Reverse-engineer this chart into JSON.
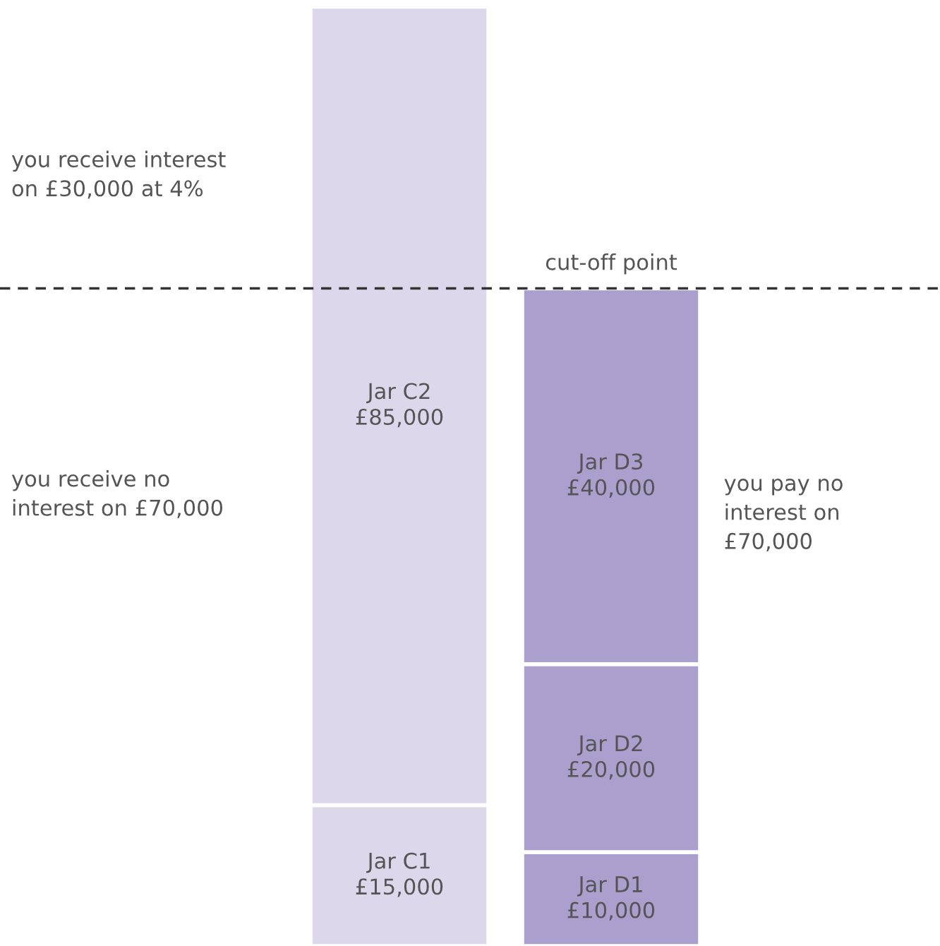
{
  "chart_data": {
    "type": "bar",
    "stacked": true,
    "categories": [
      null,
      null
    ],
    "ylim": [
      0,
      100000
    ],
    "tick_labels": false,
    "grid": false,
    "series": [
      {
        "colors": [
          "#dcd7eb",
          "#ab9fce"
        ],
        "values": [
          15000,
          10000
        ],
        "value_labels": [
          "Jar C1\n£15,000",
          "Jar D1\n£10,000"
        ]
      },
      {
        "colors": [
          "#dcd7eb",
          "#ab9fce"
        ],
        "values": [
          85000,
          20000
        ],
        "value_labels": [
          "Jar C2\n£85,000",
          "Jar D2\n£20,000"
        ]
      },
      {
        "colors": [
          "#dcd7eb",
          "#ab9fce"
        ],
        "values": [
          null,
          40000
        ],
        "value_labels": [
          null,
          "Jar D3\n£40,000"
        ]
      }
    ],
    "ref_lines": [
      {
        "axis": "y",
        "value": 70000,
        "label": "cut-off point",
        "color": "#333333",
        "line_style": "dashed"
      }
    ],
    "annotations": [
      "you receive interest\non £30,000 at 4%",
      "you receive no\ninterest on £70,000",
      "you pay no\ninterest on\n£70,000"
    ]
  }
}
